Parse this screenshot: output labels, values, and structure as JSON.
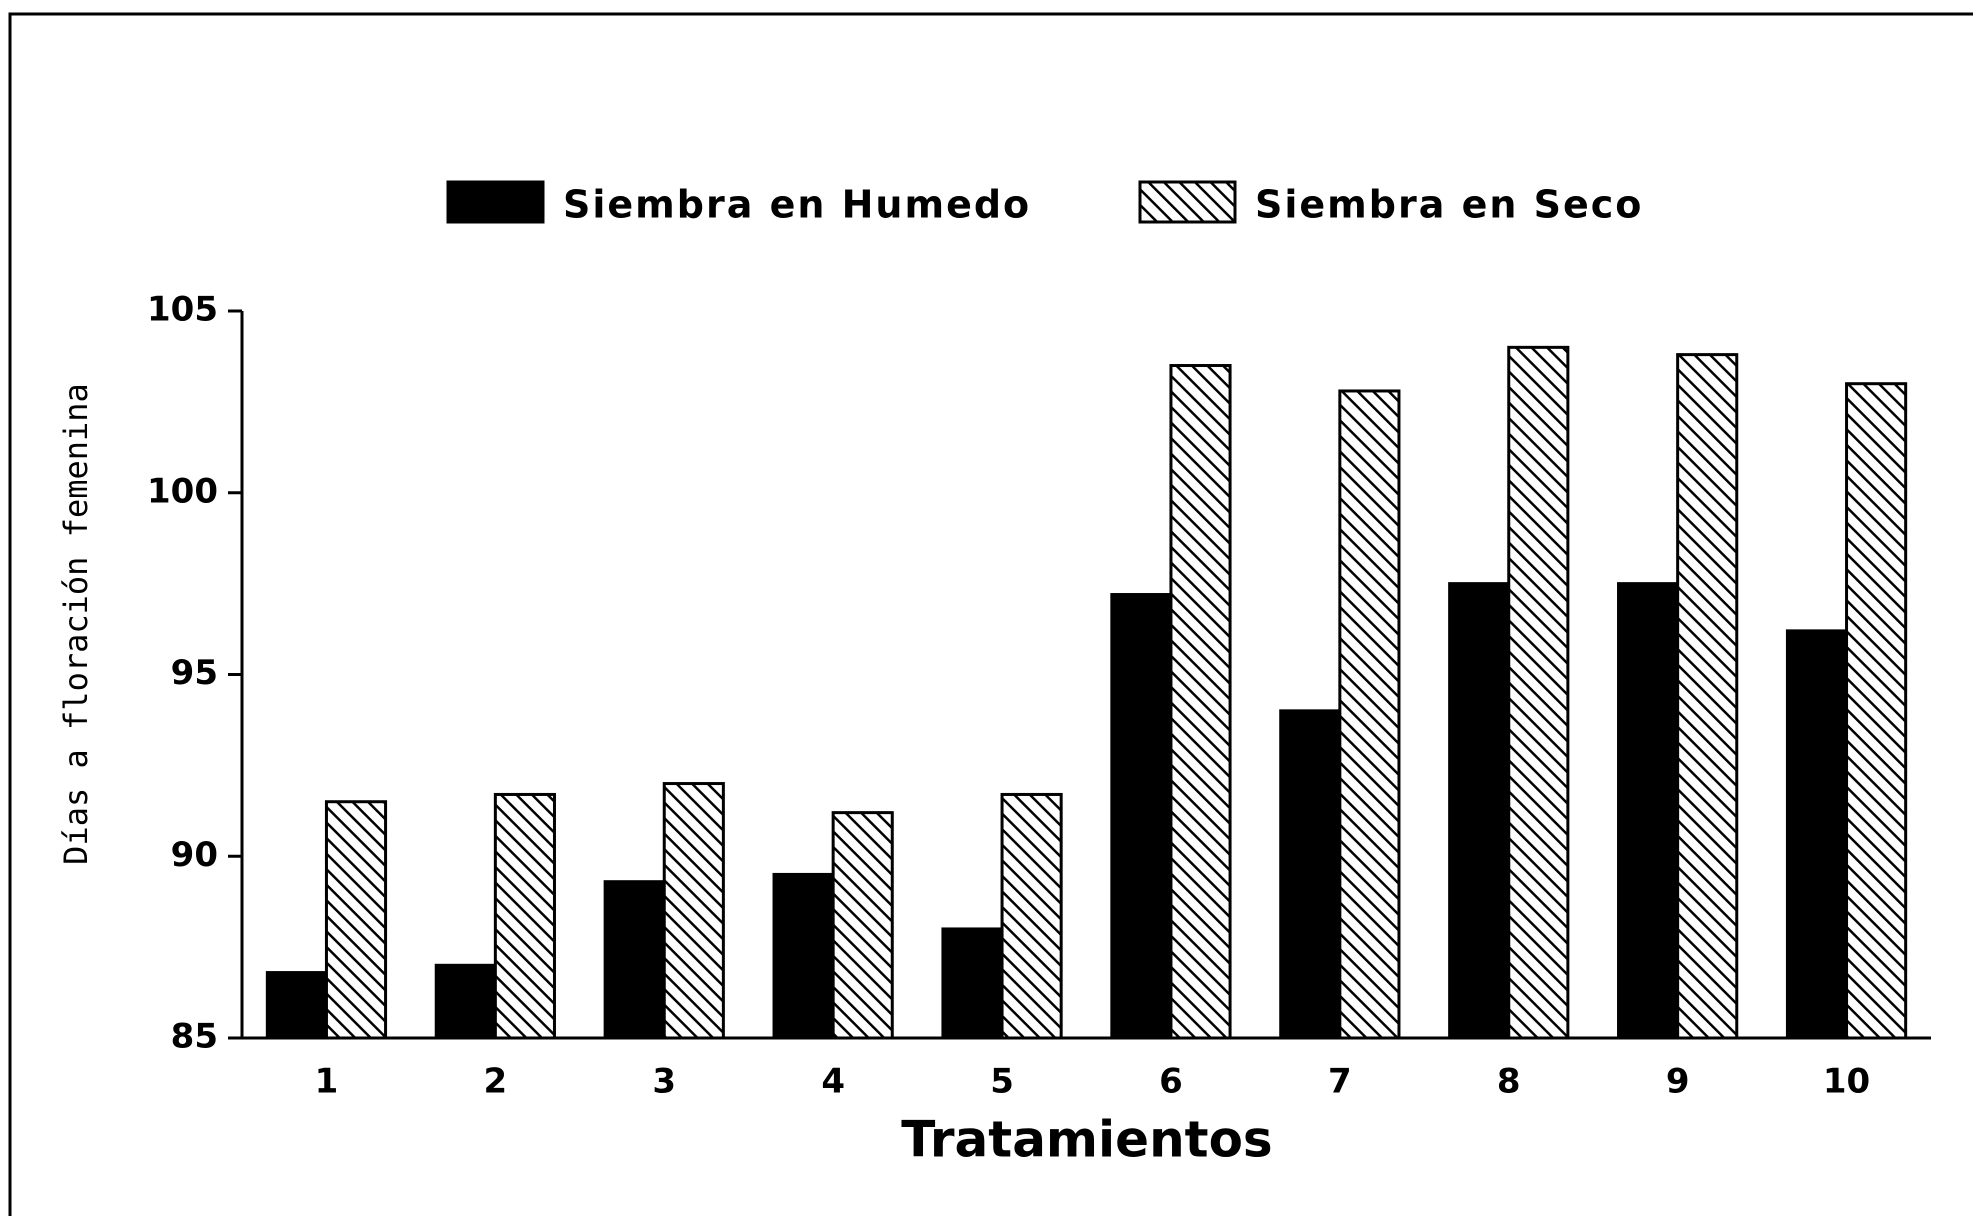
{
  "chart_data": {
    "type": "bar",
    "xlabel": "Tratamientos",
    "ylabel": "Días a floración femenina",
    "categories": [
      "1",
      "2",
      "3",
      "4",
      "5",
      "6",
      "7",
      "8",
      "9",
      "10"
    ],
    "series": [
      {
        "name": "Siembra en Humedo",
        "color": "#000000",
        "hatch": false,
        "values": [
          86.8,
          87.0,
          89.3,
          89.5,
          88.0,
          97.2,
          94.0,
          97.5,
          97.5,
          96.2
        ]
      },
      {
        "name": "Siembra en Seco",
        "color": "#000000",
        "hatch": true,
        "values": [
          91.5,
          91.7,
          92.0,
          91.2,
          91.7,
          103.5,
          102.8,
          104.0,
          103.8,
          103.0
        ]
      }
    ],
    "ylim": [
      85,
      105
    ],
    "yticks": [
      85,
      90,
      95,
      100,
      105
    ],
    "grid": false,
    "legend": "top"
  }
}
